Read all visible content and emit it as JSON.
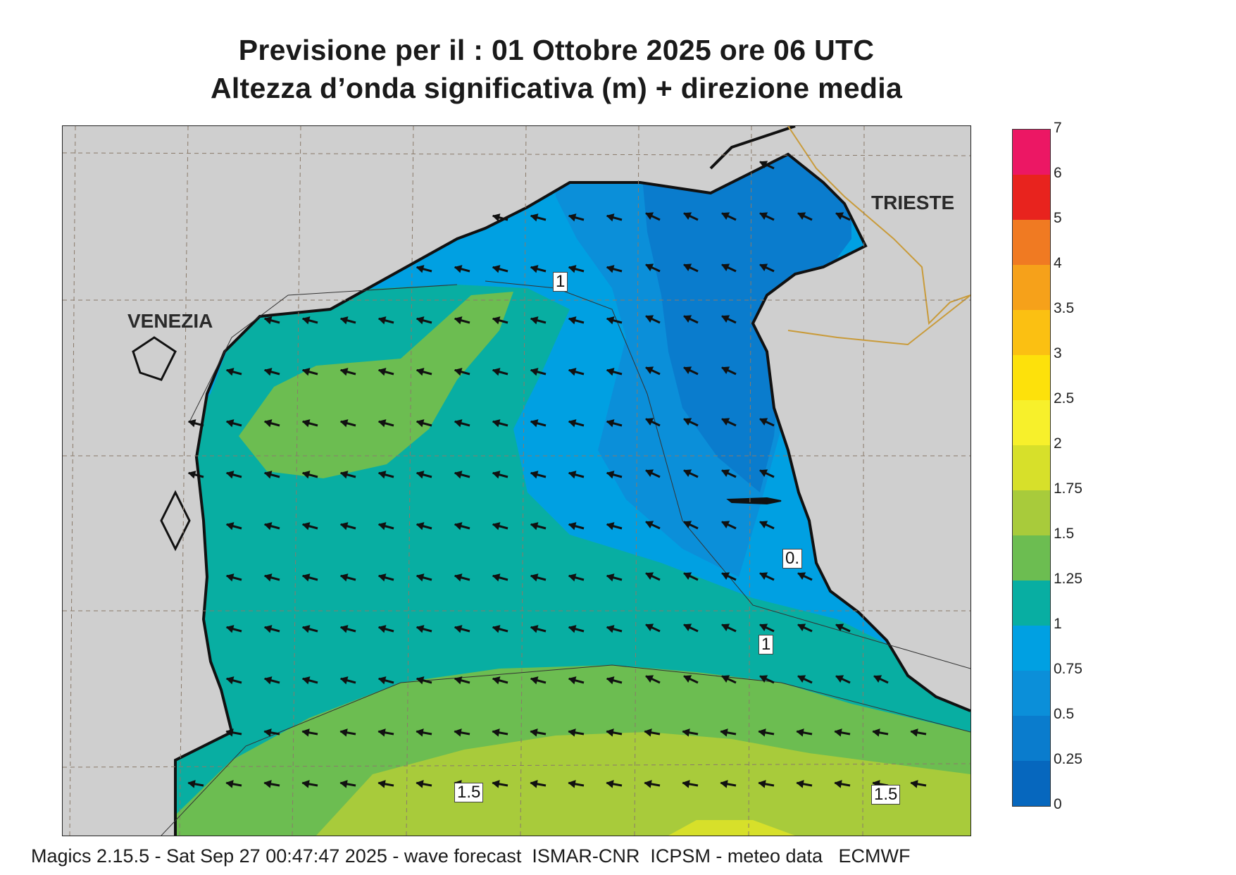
{
  "title_line1": "Previsione per il  :  01  Ottobre  2025   ore 06 UTC",
  "title_line2": "Altezza d’onda significativa (m) + direzione media",
  "cities": {
    "venezia": "VENEZIA",
    "trieste": "TRIESTE"
  },
  "contour_labels": {
    "c1_top": "1",
    "c1_bottom": "1",
    "c_05": "0.",
    "c15_left": "1.5",
    "c15_right": "1.5"
  },
  "legend": {
    "ticks": [
      "7",
      "6",
      "5",
      "4",
      "3.5",
      "3",
      "2.5",
      "2",
      "1.75",
      "1.5",
      "1.25",
      "1",
      "0.75",
      "0.5",
      "0.25",
      "0"
    ],
    "colors": [
      "#ec1764",
      "#e8231e",
      "#f07a22",
      "#f6a11a",
      "#fbc012",
      "#fde10b",
      "#f7f02b",
      "#d7e02a",
      "#a8cb3b",
      "#6cbd51",
      "#08aea2",
      "#00a0e2",
      "#0b8fd9",
      "#0a7ccd",
      "#0667be"
    ]
  },
  "footer": "Magics 2.15.5 - Sat Sep 27 00:47:47 2025 - wave forecast  ISMAR-CNR  ICPSM - meteo data   ECMWF"
}
